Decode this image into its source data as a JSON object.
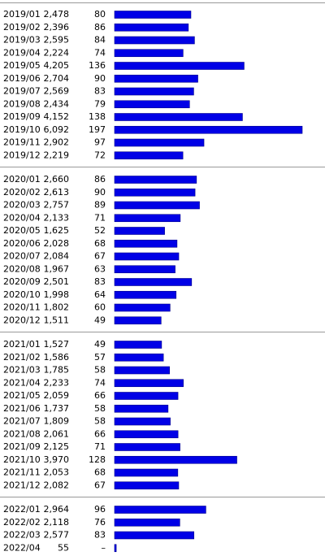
{
  "groups": [
    {
      "rows": [
        {
          "month": "2019/01",
          "count": {
            "value": 2478,
            "label": "2,478"
          },
          "avg": 80
        },
        {
          "month": "2019/02",
          "count": {
            "value": 2396,
            "label": "2,396"
          },
          "avg": 86
        },
        {
          "month": "2019/03",
          "count": {
            "value": 2595,
            "label": "2,595"
          },
          "avg": 84
        },
        {
          "month": "2019/04",
          "count": {
            "value": 2224,
            "label": "2,224"
          },
          "avg": 74
        },
        {
          "month": "2019/05",
          "count": {
            "value": 4205,
            "label": "4,205"
          },
          "avg": 136
        },
        {
          "month": "2019/06",
          "count": {
            "value": 2704,
            "label": "2,704"
          },
          "avg": 90
        },
        {
          "month": "2019/07",
          "count": {
            "value": 2569,
            "label": "2,569"
          },
          "avg": 83
        },
        {
          "month": "2019/08",
          "count": {
            "value": 2434,
            "label": "2,434"
          },
          "avg": 79
        },
        {
          "month": "2019/09",
          "count": {
            "value": 4152,
            "label": "4,152"
          },
          "avg": 138
        },
        {
          "month": "2019/10",
          "count": {
            "value": 6092,
            "label": "6,092"
          },
          "avg": 197
        },
        {
          "month": "2019/11",
          "count": {
            "value": 2902,
            "label": "2,902"
          },
          "avg": 97
        },
        {
          "month": "2019/12",
          "count": {
            "value": 2219,
            "label": "2,219"
          },
          "avg": 72
        }
      ]
    },
    {
      "rows": [
        {
          "month": "2020/01",
          "count": {
            "value": 2660,
            "label": "2,660"
          },
          "avg": 86
        },
        {
          "month": "2020/02",
          "count": {
            "value": 2613,
            "label": "2,613"
          },
          "avg": 90
        },
        {
          "month": "2020/03",
          "count": {
            "value": 2757,
            "label": "2,757"
          },
          "avg": 89
        },
        {
          "month": "2020/04",
          "count": {
            "value": 2133,
            "label": "2,133"
          },
          "avg": 71
        },
        {
          "month": "2020/05",
          "count": {
            "value": 1625,
            "label": "1,625"
          },
          "avg": 52
        },
        {
          "month": "2020/06",
          "count": {
            "value": 2028,
            "label": "2,028"
          },
          "avg": 68
        },
        {
          "month": "2020/07",
          "count": {
            "value": 2084,
            "label": "2,084"
          },
          "avg": 67
        },
        {
          "month": "2020/08",
          "count": {
            "value": 1967,
            "label": "1,967"
          },
          "avg": 63
        },
        {
          "month": "2020/09",
          "count": {
            "value": 2501,
            "label": "2,501"
          },
          "avg": 83
        },
        {
          "month": "2020/10",
          "count": {
            "value": 1998,
            "label": "1,998"
          },
          "avg": 64
        },
        {
          "month": "2020/11",
          "count": {
            "value": 1802,
            "label": "1,802"
          },
          "avg": 60
        },
        {
          "month": "2020/12",
          "count": {
            "value": 1511,
            "label": "1,511"
          },
          "avg": 49
        }
      ]
    },
    {
      "rows": [
        {
          "month": "2021/01",
          "count": {
            "value": 1527,
            "label": "1,527"
          },
          "avg": 49
        },
        {
          "month": "2021/02",
          "count": {
            "value": 1586,
            "label": "1,586"
          },
          "avg": 57
        },
        {
          "month": "2021/03",
          "count": {
            "value": 1785,
            "label": "1,785"
          },
          "avg": 58
        },
        {
          "month": "2021/04",
          "count": {
            "value": 2233,
            "label": "2,233"
          },
          "avg": 74
        },
        {
          "month": "2021/05",
          "count": {
            "value": 2059,
            "label": "2,059"
          },
          "avg": 66
        },
        {
          "month": "2021/06",
          "count": {
            "value": 1737,
            "label": "1,737"
          },
          "avg": 58
        },
        {
          "month": "2021/07",
          "count": {
            "value": 1809,
            "label": "1,809"
          },
          "avg": 58
        },
        {
          "month": "2021/08",
          "count": {
            "value": 2061,
            "label": "2,061"
          },
          "avg": 66
        },
        {
          "month": "2021/09",
          "count": {
            "value": 2125,
            "label": "2,125"
          },
          "avg": 71
        },
        {
          "month": "2021/10",
          "count": {
            "value": 3970,
            "label": "3,970"
          },
          "avg": 128
        },
        {
          "month": "2021/11",
          "count": {
            "value": 2053,
            "label": "2,053"
          },
          "avg": 68
        },
        {
          "month": "2021/12",
          "count": {
            "value": 2082,
            "label": "2,082"
          },
          "avg": 67
        }
      ]
    },
    {
      "rows": [
        {
          "month": "2022/01",
          "count": {
            "value": 2964,
            "label": "2,964"
          },
          "avg": 96
        },
        {
          "month": "2022/02",
          "count": {
            "value": 2118,
            "label": "2,118"
          },
          "avg": 76
        },
        {
          "month": "2022/03",
          "count": {
            "value": 2577,
            "label": "2,577"
          },
          "avg": 83
        },
        {
          "month": "2022/04",
          "count": {
            "value": 55,
            "label": "55"
          },
          "avg": "–"
        }
      ]
    }
  ]
}
